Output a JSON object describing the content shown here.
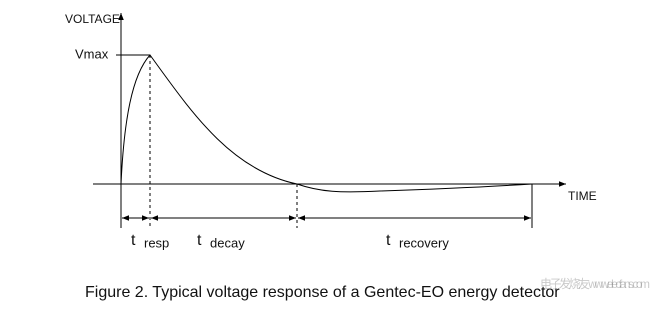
{
  "axes": {
    "y_label": "VOLTAGE",
    "peak_label": "Vmax",
    "x_label": "TIME"
  },
  "intervals": [
    {
      "symbol": "t",
      "subscript": "resp"
    },
    {
      "symbol": "t",
      "subscript": "decay"
    },
    {
      "symbol": "t",
      "subscript": "recovery"
    }
  ],
  "caption": "Figure 2. Typical voltage response of a Gentec-EO energy detector",
  "watermark": "电子发烧友 www.elecfans.com"
}
